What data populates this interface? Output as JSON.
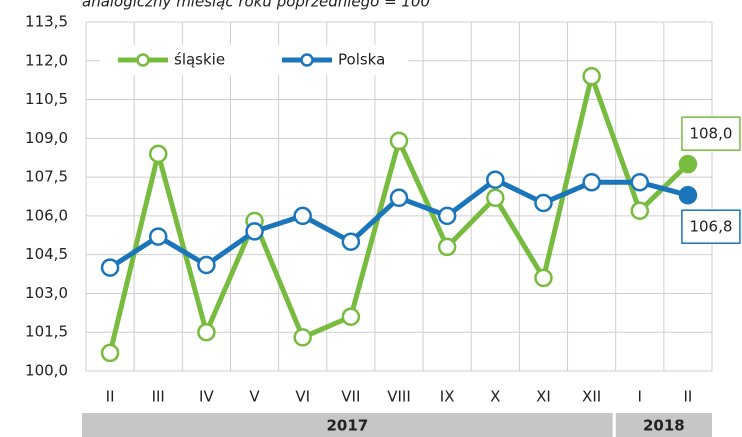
{
  "chart_data": {
    "type": "line",
    "subtitle": "analogiczny miesiąc roku poprzedniego = 100",
    "categories": [
      "II",
      "III",
      "IV",
      "V",
      "VI",
      "VII",
      "VIII",
      "IX",
      "X",
      "XI",
      "XII",
      "I",
      "II"
    ],
    "groups": [
      {
        "label": "2017",
        "first": 0,
        "last": 10
      },
      {
        "label": "2018",
        "first": 11,
        "last": 12
      }
    ],
    "series": [
      {
        "name": "śląskie",
        "color": "#77bc3f",
        "values": [
          100.7,
          108.4,
          101.5,
          105.8,
          101.3,
          102.1,
          108.9,
          104.8,
          106.7,
          103.6,
          111.4,
          106.2,
          108.0
        ],
        "value_labels": [
          null,
          null,
          null,
          null,
          null,
          null,
          null,
          null,
          null,
          null,
          null,
          null,
          "108,0"
        ]
      },
      {
        "name": "Polska",
        "color": "#1a75bb",
        "values": [
          104.0,
          105.2,
          104.1,
          105.4,
          106.0,
          105.0,
          106.7,
          106.0,
          107.4,
          106.5,
          107.3,
          107.3,
          106.8
        ],
        "value_labels": [
          null,
          null,
          null,
          null,
          null,
          null,
          null,
          null,
          null,
          null,
          null,
          null,
          "106,8"
        ]
      }
    ],
    "ylim": [
      100.0,
      113.5
    ],
    "yticks": [
      {
        "value": 100.0,
        "label": "100,0"
      },
      {
        "value": 101.5,
        "label": "101,5"
      },
      {
        "value": 103.0,
        "label": "103,0"
      },
      {
        "value": 104.5,
        "label": "104,5"
      },
      {
        "value": 106.0,
        "label": "106,0"
      },
      {
        "value": 107.5,
        "label": "107,5"
      },
      {
        "value": 109.0,
        "label": "109,0"
      },
      {
        "value": 110.5,
        "label": "110,5"
      },
      {
        "value": 112.0,
        "label": "112,0"
      },
      {
        "value": 113.5,
        "label": "113,5"
      }
    ],
    "grid": true,
    "legend": "top-left"
  }
}
